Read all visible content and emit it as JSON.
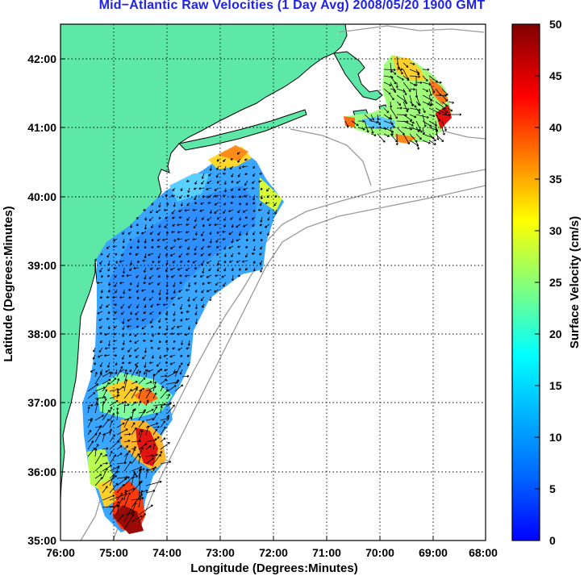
{
  "title": "Mid−Atlantic Raw Velocities (1 Day Avg) 2008/05/20 1900 GMT",
  "map": {
    "xlabel": "Longitude (Degrees:Minutes)",
    "ylabel": "Latitude (Degrees:Minutes)",
    "x_ticks": [
      "76:00",
      "75:00",
      "74:00",
      "73:00",
      "72:00",
      "71:00",
      "70:00",
      "69:00",
      "68:00"
    ],
    "y_ticks": [
      "42:00",
      "41:00",
      "40:00",
      "39:00",
      "38:00",
      "37:00",
      "36:00",
      "35:00"
    ],
    "lon_range": [
      -76,
      -68
    ],
    "lat_range": [
      35,
      42.5
    ],
    "land_color": "#5ee8a8",
    "grid": "dotted"
  },
  "colorbar": {
    "label": "Surface Velocity (cm/s)",
    "ticks": [
      "50",
      "45",
      "40",
      "35",
      "30",
      "25",
      "20",
      "15",
      "10",
      "5",
      "0"
    ],
    "range": [
      0,
      50
    ],
    "colormap": "jet"
  }
}
